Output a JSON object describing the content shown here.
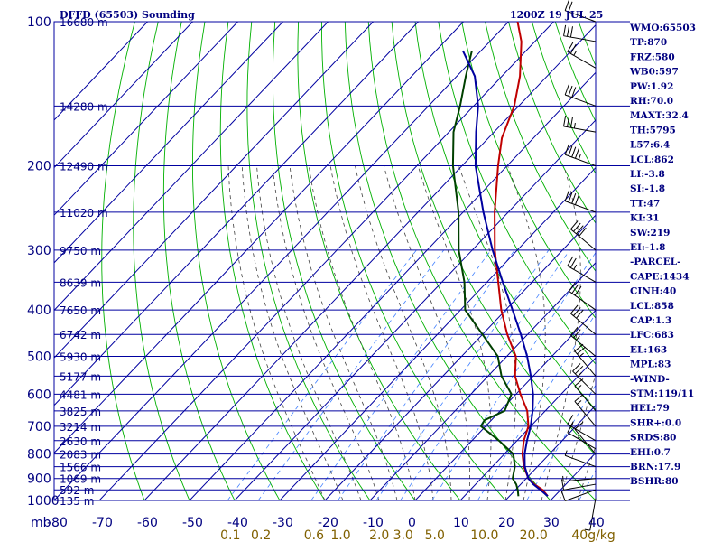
{
  "header": {
    "title": "DFFD (65503) Sounding",
    "time": "1200Z 19 JUL 25"
  },
  "colors": {
    "grid": "#0000a0",
    "isotherm": "#0000a0",
    "dry_adiabat": "#00b000",
    "moist_adiabat": "#404040",
    "mixing_ratio": "#4080ff",
    "temperature": "#c00000",
    "dewpoint": "#004000",
    "parcel": "#0000a0",
    "wind": "#000000",
    "mixing_label": "#806000"
  },
  "chart_data": {
    "type": "skew-t",
    "pressure_axis_label": "mb",
    "pressure_ticks": [
      100,
      200,
      300,
      400,
      500,
      600,
      700,
      800,
      900,
      1000
    ],
    "height_ticks": [
      {
        "p": 100,
        "label": "16680 m"
      },
      {
        "p": 150,
        "label": "14280 m"
      },
      {
        "p": 200,
        "label": "12490 m"
      },
      {
        "p": 250,
        "label": "11020 m"
      },
      {
        "p": 300,
        "label": "9750 m"
      },
      {
        "p": 350,
        "label": "8639 m"
      },
      {
        "p": 400,
        "label": "7650 m"
      },
      {
        "p": 450,
        "label": "6742 m"
      },
      {
        "p": 500,
        "label": "5930 m"
      },
      {
        "p": 550,
        "label": "5177 m"
      },
      {
        "p": 600,
        "label": "4481 m"
      },
      {
        "p": 650,
        "label": "3825 m"
      },
      {
        "p": 700,
        "label": "3214 m"
      },
      {
        "p": 750,
        "label": "2630 m"
      },
      {
        "p": 800,
        "label": "2083 m"
      },
      {
        "p": 850,
        "label": "1566 m"
      },
      {
        "p": 900,
        "label": "1069 m"
      },
      {
        "p": 950,
        "label": "592 m"
      },
      {
        "p": 1000,
        "label": "135 m"
      }
    ],
    "temperature_ticks": [
      -80,
      -70,
      -60,
      -50,
      -40,
      -30,
      -20,
      -10,
      0,
      10,
      20,
      30,
      40
    ],
    "mixing_ratio_labels": [
      {
        "value": 0.1,
        "label": "0.1"
      },
      {
        "value": 0.2,
        "label": "0.2"
      },
      {
        "value": 0.6,
        "label": "0.6"
      },
      {
        "value": 1.0,
        "label": "1.0"
      },
      {
        "value": 2.0,
        "label": "2.0"
      },
      {
        "value": 3.0,
        "label": "3.0"
      },
      {
        "value": 5.0,
        "label": "5.0"
      },
      {
        "value": 10.0,
        "label": "10.0"
      },
      {
        "value": 20.0,
        "label": "20.0"
      },
      {
        "value": 40.0,
        "label": "40g/kg"
      }
    ],
    "series": [
      {
        "name": "Temperature",
        "points": [
          [
            980,
            28.5
          ],
          [
            950,
            26
          ],
          [
            925,
            23
          ],
          [
            900,
            20.5
          ],
          [
            850,
            17
          ],
          [
            800,
            14
          ],
          [
            750,
            11.5
          ],
          [
            700,
            9.5
          ],
          [
            650,
            6
          ],
          [
            600,
            1
          ],
          [
            550,
            -4
          ],
          [
            500,
            -8
          ],
          [
            450,
            -14.5
          ],
          [
            400,
            -21
          ],
          [
            350,
            -27.5
          ],
          [
            300,
            -35
          ],
          [
            250,
            -43
          ],
          [
            200,
            -52
          ],
          [
            175,
            -57
          ],
          [
            150,
            -61
          ],
          [
            130,
            -66
          ],
          [
            110,
            -73
          ],
          [
            100,
            -78
          ]
        ]
      },
      {
        "name": "Dewpoint",
        "points": [
          [
            980,
            22
          ],
          [
            950,
            20.5
          ],
          [
            925,
            19
          ],
          [
            900,
            17
          ],
          [
            850,
            15
          ],
          [
            800,
            12
          ],
          [
            750,
            6
          ],
          [
            700,
            -1
          ],
          [
            680,
            -1.5
          ],
          [
            650,
            1
          ],
          [
            600,
            -1
          ],
          [
            550,
            -7
          ],
          [
            500,
            -12
          ],
          [
            450,
            -20
          ],
          [
            400,
            -29
          ],
          [
            350,
            -35
          ],
          [
            300,
            -43
          ],
          [
            250,
            -51
          ],
          [
            200,
            -62
          ],
          [
            170,
            -69
          ],
          [
            150,
            -73
          ],
          [
            130,
            -78
          ],
          [
            115,
            -82
          ]
        ]
      },
      {
        "name": "Parcel",
        "points": [
          [
            980,
            28.5
          ],
          [
            950,
            25.5
          ],
          [
            925,
            22.8
          ],
          [
            900,
            20.5
          ],
          [
            850,
            17.2
          ],
          [
            800,
            14.5
          ],
          [
            750,
            12.2
          ],
          [
            700,
            10
          ],
          [
            650,
            7.2
          ],
          [
            600,
            3.8
          ],
          [
            550,
            -0.5
          ],
          [
            500,
            -5.5
          ],
          [
            450,
            -11.5
          ],
          [
            400,
            -18.5
          ],
          [
            350,
            -26.5
          ],
          [
            300,
            -35.5
          ],
          [
            250,
            -45.5
          ],
          [
            200,
            -57
          ],
          [
            170,
            -64
          ],
          [
            150,
            -69
          ],
          [
            130,
            -76
          ],
          [
            115,
            -84
          ]
        ]
      }
    ],
    "winds": [
      {
        "p": 990,
        "dir": 190,
        "spd": 5
      },
      {
        "p": 950,
        "dir": 250,
        "spd": 10
      },
      {
        "p": 925,
        "dir": 260,
        "spd": 10
      },
      {
        "p": 900,
        "dir": 265,
        "spd": 5
      },
      {
        "p": 850,
        "dir": 290,
        "spd": 5
      },
      {
        "p": 800,
        "dir": 320,
        "spd": 10
      },
      {
        "p": 780,
        "dir": 300,
        "spd": 10
      },
      {
        "p": 750,
        "dir": 300,
        "spd": 15
      },
      {
        "p": 700,
        "dir": 320,
        "spd": 15
      },
      {
        "p": 650,
        "dir": 320,
        "spd": 15
      },
      {
        "p": 600,
        "dir": 315,
        "spd": 25
      },
      {
        "p": 550,
        "dir": 320,
        "spd": 25
      },
      {
        "p": 500,
        "dir": 310,
        "spd": 25
      },
      {
        "p": 450,
        "dir": 310,
        "spd": 30
      },
      {
        "p": 400,
        "dir": 305,
        "spd": 30
      },
      {
        "p": 350,
        "dir": 300,
        "spd": 25
      },
      {
        "p": 300,
        "dir": 310,
        "spd": 40
      },
      {
        "p": 250,
        "dir": 290,
        "spd": 40
      },
      {
        "p": 200,
        "dir": 290,
        "spd": 45
      },
      {
        "p": 170,
        "dir": 280,
        "spd": 35
      },
      {
        "p": 150,
        "dir": 290,
        "spd": 30
      },
      {
        "p": 125,
        "dir": 300,
        "spd": 25
      },
      {
        "p": 110,
        "dir": 280,
        "spd": 30
      },
      {
        "p": 100,
        "dir": 290,
        "spd": 20
      }
    ]
  },
  "indices": [
    "WMO:65503",
    "TP:870",
    "FRZ:580",
    "WB0:597",
    "PW:1.92",
    "RH:70.0",
    "MAXT:32.4",
    "TH:5795",
    "L57:6.4",
    "LCL:862",
    "LI:-3.8",
    "SI:-1.8",
    "TT:47",
    "KI:31",
    "SW:219",
    "EI:-1.8",
    "-PARCEL-",
    "CAPE:1434",
    "CINH:40",
    "LCL:858",
    "CAP:1.3",
    "LFC:683",
    "EL:163",
    "MPL:83",
    "-WIND-",
    "STM:119/11",
    "HEL:79",
    "SHR+:0.0",
    "SRDS:80",
    "EHI:0.7",
    "BRN:17.9",
    "BSHR:80"
  ]
}
